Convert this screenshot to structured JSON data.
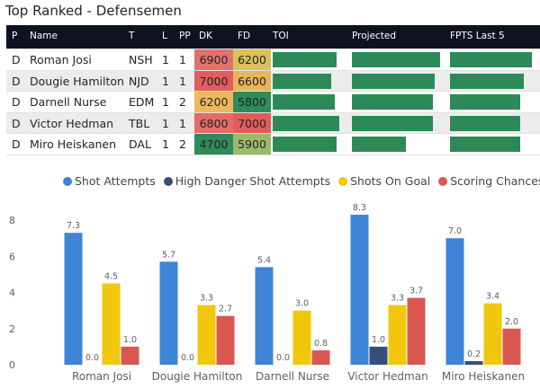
{
  "title": "Top Ranked - Defensemen",
  "table": {
    "headers": {
      "p": "P",
      "name": "Name",
      "t": "T",
      "l": "L",
      "pp": "PP",
      "dk": "DK",
      "fd": "FD",
      "toi": "TOI",
      "projected": "Projected",
      "fpts": "FPTS Last 5"
    },
    "rows": [
      {
        "p": "D",
        "name": "Roman Josi",
        "t": "NSH",
        "l": "1",
        "pp": "1",
        "dk": "6900",
        "fd": "6200",
        "dk_color": "#e4726c",
        "fd_color": "#d8c25a",
        "toi": 0.82,
        "projected": 0.94,
        "fpts": 0.94
      },
      {
        "p": "D",
        "name": "Dougie Hamilton",
        "t": "NJD",
        "l": "1",
        "pp": "1",
        "dk": "7000",
        "fd": "6600",
        "dk_color": "#e25c5e",
        "fd_color": "#e6b45a",
        "toi": 0.76,
        "projected": 0.88,
        "fpts": 0.85
      },
      {
        "p": "D",
        "name": "Darnell Nurse",
        "t": "EDM",
        "l": "1",
        "pp": "2",
        "dk": "6200",
        "fd": "5800",
        "dk_color": "#ebb95d",
        "fd_color": "#2e8b5a",
        "toi": 0.8,
        "projected": 0.87,
        "fpts": 0.8
      },
      {
        "p": "D",
        "name": "Victor Hedman",
        "t": "TBL",
        "l": "1",
        "pp": "1",
        "dk": "6800",
        "fd": "7000",
        "dk_color": "#e46c67",
        "fd_color": "#e25c5e",
        "toi": 0.86,
        "projected": 0.87,
        "fpts": 0.8
      },
      {
        "p": "D",
        "name": "Miro Heiskanen",
        "t": "DAL",
        "l": "1",
        "pp": "2",
        "dk": "4700",
        "fd": "5900",
        "dk_color": "#2e8b5a",
        "fd_color": "#9cb96a",
        "toi": 0.83,
        "projected": 0.58,
        "fpts": 0.8
      }
    ]
  },
  "chart_data": {
    "type": "bar",
    "categories": [
      "Roman Josi",
      "Dougie Hamilton",
      "Darnell Nurse",
      "Victor Hedman",
      "Miro Heiskanen"
    ],
    "series": [
      {
        "name": "Shot Attempts",
        "color": "#3e84d8",
        "values": [
          7.3,
          5.7,
          5.4,
          8.3,
          7.0
        ],
        "labels": [
          "7.3",
          "5.7",
          "5.4",
          "8.3",
          "7.0"
        ]
      },
      {
        "name": "High Danger Shot Attempts",
        "color": "#374f7e",
        "values": [
          0.0,
          0.0,
          0.0,
          1.0,
          0.2
        ],
        "labels": [
          "0.0",
          "0.0",
          "0.0",
          "1.0",
          "0.2"
        ]
      },
      {
        "name": "Shots On Goal",
        "color": "#f0c70d",
        "values": [
          4.5,
          3.3,
          3.0,
          3.3,
          3.4
        ],
        "labels": [
          "4.5",
          "3.3",
          "3.0",
          "3.3",
          "3.4"
        ]
      },
      {
        "name": "Scoring Chances",
        "color": "#d9584f",
        "values": [
          1.0,
          2.7,
          0.8,
          3.7,
          2.0
        ],
        "labels": [
          "1.0",
          "2.7",
          "0.8",
          "3.7",
          "2.0"
        ]
      }
    ],
    "ylim": [
      0,
      8.6
    ],
    "yticks": [
      "0",
      "2",
      "4",
      "6",
      "8"
    ],
    "ytick_values": [
      0,
      2,
      4,
      6,
      8
    ],
    "legend_position": "top-center"
  }
}
